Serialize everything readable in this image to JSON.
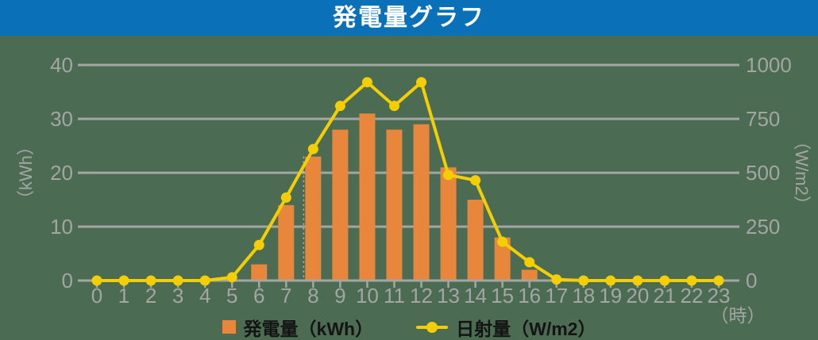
{
  "header": {
    "title": "発電量グラフ"
  },
  "legend": {
    "generation_label": "発電量（kWh）",
    "irradiance_label": "日射量（W/m2）"
  },
  "axes": {
    "left_unit": "（kWh）",
    "right_unit": "（W/m2）",
    "x_unit": "（時）"
  },
  "colors": {
    "header_blue": "#0A71B9",
    "background_green": "#4C6B53",
    "bar_orange": "#E8873B",
    "line_yellow": "#F2CE02",
    "grid_gray": "#A3A6A3",
    "tick_label_gray": "#A3A6A3",
    "title_text": "#FFFFFF",
    "legend_text": "#141414",
    "dotted_guide": "rgba(255,255,255,0.55)"
  },
  "chart_data": {
    "type": "bar+line",
    "title": "発電量グラフ",
    "x_hours": [
      0,
      1,
      2,
      3,
      4,
      5,
      6,
      7,
      8,
      9,
      10,
      11,
      12,
      13,
      14,
      15,
      16,
      17,
      18,
      19,
      20,
      21,
      22,
      23
    ],
    "series": [
      {
        "name": "発電量（kWh）",
        "type": "bar",
        "axis": "left",
        "unit": "kWh",
        "values": [
          0,
          0,
          0,
          0,
          0,
          0,
          3,
          14,
          23,
          28,
          31,
          28,
          29,
          21,
          15,
          8,
          2,
          0,
          0,
          0,
          0,
          0,
          0,
          0
        ]
      },
      {
        "name": "日射量（W/m2）",
        "type": "line",
        "axis": "right",
        "unit": "W/m2",
        "values": [
          0,
          0,
          0,
          0,
          0,
          15,
          165,
          385,
          610,
          810,
          920,
          810,
          920,
          490,
          465,
          180,
          85,
          5,
          0,
          0,
          0,
          0,
          0,
          0
        ]
      }
    ],
    "left_axis": {
      "label": "（kWh）",
      "ticks": [
        0,
        10,
        20,
        30,
        40
      ],
      "range": [
        0,
        40
      ]
    },
    "right_axis": {
      "label": "（W/m2）",
      "ticks": [
        0,
        250,
        500,
        750,
        1000
      ],
      "range": [
        0,
        1000
      ]
    },
    "x_axis": {
      "label": "（時）",
      "ticks": [
        0,
        1,
        2,
        3,
        4,
        5,
        6,
        7,
        8,
        9,
        10,
        11,
        12,
        13,
        14,
        15,
        16,
        17,
        18,
        19,
        20,
        21,
        22,
        23
      ]
    },
    "grid": true,
    "legend_position": "bottom",
    "layout_hints": {
      "dotted_guide_hour": 8
    }
  }
}
